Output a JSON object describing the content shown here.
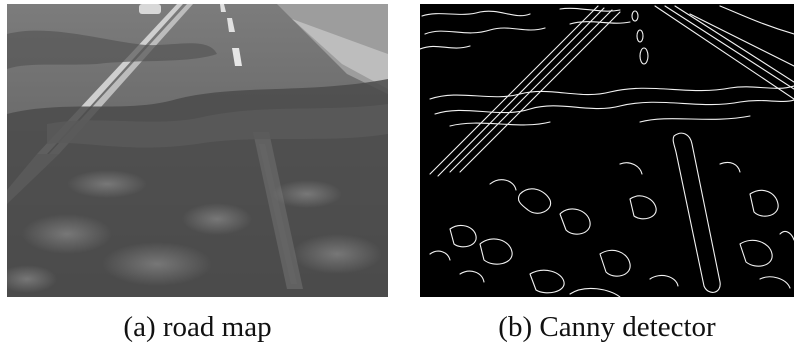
{
  "figure": {
    "panels": [
      {
        "caption": "(a) road map"
      },
      {
        "caption": "(b) Canny detector"
      }
    ]
  }
}
